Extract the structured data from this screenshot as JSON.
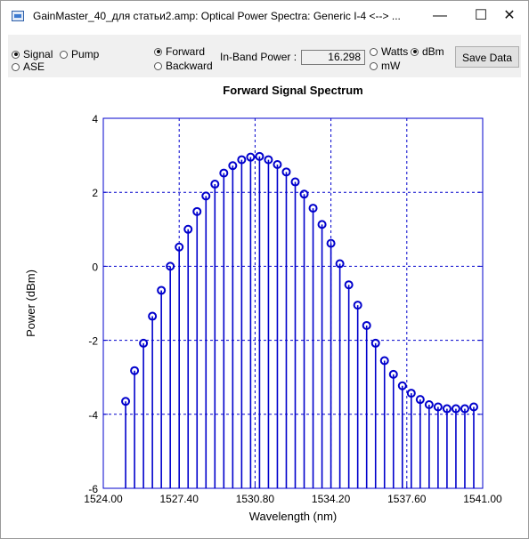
{
  "window": {
    "title": "GainMaster_40_для статьи2.amp:  Optical Power Spectra:  Generic I-4  <-->  ...",
    "min_icon": "minimize-icon",
    "max_icon": "maximize-icon",
    "close_icon": "close-icon",
    "min_glyph": "—",
    "max_glyph": "☐",
    "close_glyph": "✕"
  },
  "controls": {
    "signal_label": "Signal",
    "pump_label": "Pump",
    "ase_label": "ASE",
    "forward_label": "Forward",
    "backward_label": "Backward",
    "inband_label": "In-Band Power :",
    "inband_value": "16.298",
    "watts_label": "Watts",
    "dbm_label": "dBm",
    "mw_label": "mW",
    "save_label": "Save Data",
    "selected_type": "Signal",
    "selected_direction": "Forward",
    "selected_unit": "dBm"
  },
  "chart_data": {
    "type": "stem",
    "title": "Forward Signal Spectrum",
    "xlabel": "Wavelength (nm)",
    "ylabel": "Power (dBm)",
    "xlim": [
      1524.0,
      1541.0
    ],
    "ylim": [
      -6,
      4
    ],
    "xticks": [
      "1524.00",
      "1527.40",
      "1530.80",
      "1534.20",
      "1537.60",
      "1541.00"
    ],
    "yticks": [
      "-6",
      "-4",
      "-2",
      "0",
      "2",
      "4"
    ],
    "grid": true,
    "color": "#0000cc",
    "x": [
      1525.0,
      1525.4,
      1525.8,
      1526.2,
      1526.6,
      1527.0,
      1527.4,
      1527.8,
      1528.2,
      1528.6,
      1529.0,
      1529.4,
      1529.8,
      1530.2,
      1530.6,
      1531.0,
      1531.4,
      1531.8,
      1532.2,
      1532.6,
      1533.0,
      1533.4,
      1533.8,
      1534.2,
      1534.6,
      1535.0,
      1535.4,
      1535.8,
      1536.2,
      1536.6,
      1537.0,
      1537.4,
      1537.8,
      1538.2,
      1538.6,
      1539.0,
      1539.4,
      1539.8,
      1540.2,
      1540.6
    ],
    "y": [
      -3.65,
      -2.82,
      -2.08,
      -1.35,
      -0.65,
      0.0,
      0.52,
      1.0,
      1.48,
      1.9,
      2.22,
      2.52,
      2.72,
      2.88,
      2.95,
      2.97,
      2.88,
      2.75,
      2.55,
      2.28,
      1.95,
      1.57,
      1.13,
      0.62,
      0.07,
      -0.5,
      -1.05,
      -1.6,
      -2.08,
      -2.55,
      -2.92,
      -3.23,
      -3.43,
      -3.6,
      -3.74,
      -3.8,
      -3.85,
      -3.85,
      -3.85,
      -3.8
    ]
  }
}
